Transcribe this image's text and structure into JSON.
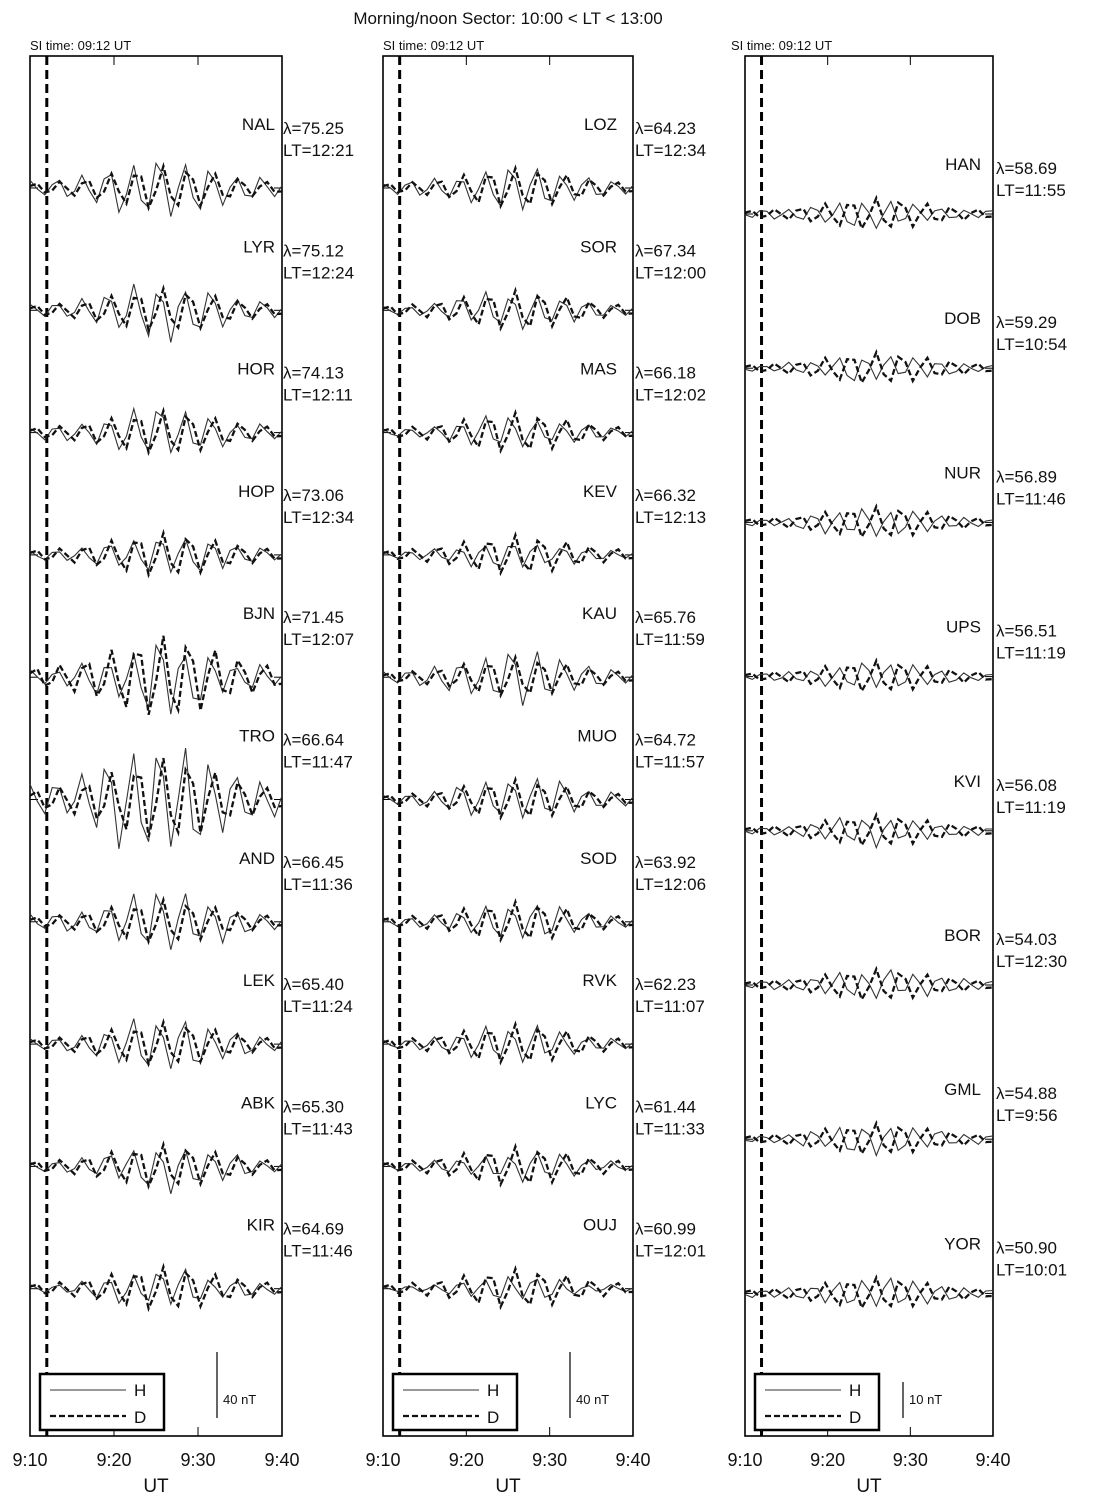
{
  "title": "Morning/noon Sector: 10:00 < LT < 13:00",
  "chart_data": [
    {
      "type": "line",
      "si_label": "SI time: 09:12 UT",
      "si_time": "9:12",
      "x_ticks": [
        "9:10",
        "9:20",
        "9:30",
        "9:40"
      ],
      "xlim": [
        "9:10",
        "9:40"
      ],
      "xlabel": "UT",
      "legend": [
        "H",
        "D"
      ],
      "legend_placement": "bottom-left",
      "scale_label": "40 nT",
      "scale_value_nT": 40,
      "stations": [
        {
          "code": "NAL",
          "lat": "λ=75.25",
          "lt": "LT=12:21"
        },
        {
          "code": "LYR",
          "lat": "λ=75.12",
          "lt": "LT=12:24"
        },
        {
          "code": "HOR",
          "lat": "λ=74.13",
          "lt": "LT=12:11"
        },
        {
          "code": "HOP",
          "lat": "λ=73.06",
          "lt": "LT=12:34"
        },
        {
          "code": "BJN",
          "lat": "λ=71.45",
          "lt": "LT=12:07"
        },
        {
          "code": "TRO",
          "lat": "λ=66.64",
          "lt": "LT=11:47"
        },
        {
          "code": "AND",
          "lat": "λ=66.45",
          "lt": "LT=11:36"
        },
        {
          "code": "LEK",
          "lat": "λ=65.40",
          "lt": "LT=11:24"
        },
        {
          "code": "ABK",
          "lat": "λ=65.30",
          "lt": "LT=11:43"
        },
        {
          "code": "KIR",
          "lat": "λ=64.69",
          "lt": "LT=11:46"
        }
      ]
    },
    {
      "type": "line",
      "si_label": "SI time: 09:12 UT",
      "si_time": "9:12",
      "x_ticks": [
        "9:10",
        "9:20",
        "9:30",
        "9:40"
      ],
      "xlim": [
        "9:10",
        "9:40"
      ],
      "xlabel": "UT",
      "legend": [
        "H",
        "D"
      ],
      "legend_placement": "bottom-left",
      "scale_label": "40 nT",
      "scale_value_nT": 40,
      "stations": [
        {
          "code": "LOZ",
          "lat": "λ=64.23",
          "lt": "LT=12:34"
        },
        {
          "code": "SOR",
          "lat": "λ=67.34",
          "lt": "LT=12:00"
        },
        {
          "code": "MAS",
          "lat": "λ=66.18",
          "lt": "LT=12:02"
        },
        {
          "code": "KEV",
          "lat": "λ=66.32",
          "lt": "LT=12:13"
        },
        {
          "code": "KAU",
          "lat": "λ=65.76",
          "lt": "LT=11:59"
        },
        {
          "code": "MUO",
          "lat": "λ=64.72",
          "lt": "LT=11:57"
        },
        {
          "code": "SOD",
          "lat": "λ=63.92",
          "lt": "LT=12:06"
        },
        {
          "code": "RVK",
          "lat": "λ=62.23",
          "lt": "LT=11:07"
        },
        {
          "code": "LYC",
          "lat": "λ=61.44",
          "lt": "LT=11:33"
        },
        {
          "code": "OUJ",
          "lat": "λ=60.99",
          "lt": "LT=12:01"
        }
      ]
    },
    {
      "type": "line",
      "si_label": "SI time: 09:12 UT",
      "si_time": "9:12",
      "x_ticks": [
        "9:10",
        "9:20",
        "9:30",
        "9:40"
      ],
      "xlim": [
        "9:10",
        "9:40"
      ],
      "xlabel": "UT",
      "legend": [
        "H",
        "D"
      ],
      "legend_placement": "bottom-left",
      "scale_label": "10 nT",
      "scale_value_nT": 10,
      "stations": [
        {
          "code": "HAN",
          "lat": "λ=58.69",
          "lt": "LT=11:55"
        },
        {
          "code": "DOB",
          "lat": "λ=59.29",
          "lt": "LT=10:54"
        },
        {
          "code": "NUR",
          "lat": "λ=56.89",
          "lt": "LT=11:46"
        },
        {
          "code": "UPS",
          "lat": "λ=56.51",
          "lt": "LT=11:19"
        },
        {
          "code": "KVI",
          "lat": "λ=56.08",
          "lt": "LT=11:19"
        },
        {
          "code": "BOR",
          "lat": "λ=54.03",
          "lt": "LT=12:30"
        },
        {
          "code": "GML",
          "lat": "λ=54.88",
          "lt": "LT=9:56"
        },
        {
          "code": "YOR",
          "lat": "λ=50.90",
          "lt": "LT=10:01"
        }
      ]
    }
  ]
}
